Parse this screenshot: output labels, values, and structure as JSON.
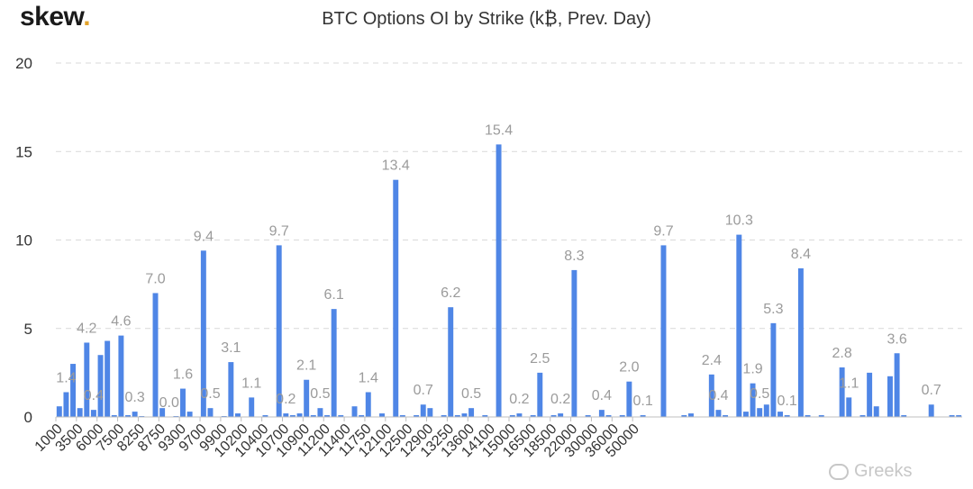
{
  "brand": {
    "logo_text": "skew",
    "logo_dot": ".",
    "accent": "#e3a32b"
  },
  "watermark": {
    "text": "Greeks",
    "icon": "wechat-icon"
  },
  "colors": {
    "bar": "#4f86e6",
    "label": "#9b9b9b",
    "grid": "#d9d9d9",
    "axis": "#bfbfbf"
  },
  "chart_data": {
    "type": "bar",
    "title": "BTC Options OI by Strike (k₿, Prev. Day)",
    "xlabel": "",
    "ylabel": "",
    "ylim": [
      0,
      20
    ],
    "yticks": [
      0,
      5,
      10,
      15,
      20
    ],
    "grid": "horizontal dashed",
    "x_tick_labels": [
      "1000",
      "3500",
      "6000",
      "7500",
      "8250",
      "8750",
      "9300",
      "9700",
      "9900",
      "10200",
      "10400",
      "10700",
      "10900",
      "11200",
      "11400",
      "11750",
      "12100",
      "12500",
      "12900",
      "13250",
      "13600",
      "14100",
      "15000",
      "16500",
      "18500",
      "22000",
      "30000",
      "36000",
      "50000"
    ],
    "tick_every": 3,
    "values": [
      0.6,
      1.4,
      3.0,
      0.5,
      4.2,
      0.4,
      3.5,
      4.3,
      0.1,
      4.6,
      0.1,
      0.3,
      0.05,
      0.0,
      7.0,
      0.5,
      0.0,
      0.05,
      1.6,
      0.3,
      0.0,
      9.4,
      0.5,
      0.0,
      0.05,
      3.1,
      0.2,
      0.0,
      1.1,
      0.0,
      0.1,
      0.0,
      9.7,
      0.2,
      0.1,
      0.2,
      2.1,
      0.1,
      0.5,
      0.1,
      6.1,
      0.1,
      0.0,
      0.6,
      0.1,
      1.4,
      0.0,
      0.2,
      0.0,
      13.4,
      0.1,
      0.0,
      0.1,
      0.7,
      0.5,
      0.0,
      0.1,
      6.2,
      0.1,
      0.2,
      0.5,
      0.0,
      0.1,
      0.0,
      15.4,
      0.0,
      0.1,
      0.2,
      0.0,
      0.1,
      2.5,
      0.0,
      0.1,
      0.2,
      0.0,
      8.3,
      0.0,
      0.1,
      0.0,
      0.4,
      0.1,
      0.0,
      0.1,
      2.0,
      0.0,
      0.1,
      0.0,
      0.0,
      9.7,
      0.0,
      0.0,
      0.1,
      0.2,
      0.0,
      0.0,
      2.4,
      0.4,
      0.1,
      0.0,
      10.3,
      0.3,
      1.9,
      0.5,
      0.7,
      5.3,
      0.3,
      0.1,
      0.0,
      8.4,
      0.1,
      0.0,
      0.1,
      0.0,
      0.0,
      2.8,
      1.1,
      0.0,
      0.1,
      2.5,
      0.6,
      0.0,
      2.3,
      3.6,
      0.1,
      0.0,
      0.0,
      0.0,
      0.7,
      0.0,
      0.0,
      0.1,
      0.1
    ],
    "data_labels": [
      {
        "i": 1,
        "text": "1.4"
      },
      {
        "i": 4,
        "text": "4.2"
      },
      {
        "i": 5,
        "text": "0.4"
      },
      {
        "i": 9,
        "text": "4.6"
      },
      {
        "i": 11,
        "text": "0.3"
      },
      {
        "i": 14,
        "text": "7.0"
      },
      {
        "i": 16,
        "text": "0.0"
      },
      {
        "i": 18,
        "text": "1.6"
      },
      {
        "i": 21,
        "text": "9.4"
      },
      {
        "i": 22,
        "text": "0.5"
      },
      {
        "i": 25,
        "text": "3.1"
      },
      {
        "i": 28,
        "text": "1.1"
      },
      {
        "i": 32,
        "text": "9.7"
      },
      {
        "i": 33,
        "text": "0.2"
      },
      {
        "i": 36,
        "text": "2.1"
      },
      {
        "i": 38,
        "text": "0.5"
      },
      {
        "i": 40,
        "text": "6.1"
      },
      {
        "i": 45,
        "text": "1.4"
      },
      {
        "i": 49,
        "text": "13.4"
      },
      {
        "i": 53,
        "text": "0.7"
      },
      {
        "i": 57,
        "text": "6.2"
      },
      {
        "i": 60,
        "text": "0.5"
      },
      {
        "i": 64,
        "text": "15.4"
      },
      {
        "i": 67,
        "text": "0.2"
      },
      {
        "i": 70,
        "text": "2.5"
      },
      {
        "i": 73,
        "text": "0.2"
      },
      {
        "i": 75,
        "text": "8.3"
      },
      {
        "i": 79,
        "text": "0.4"
      },
      {
        "i": 83,
        "text": "2.0"
      },
      {
        "i": 85,
        "text": "0.1"
      },
      {
        "i": 88,
        "text": "9.7"
      },
      {
        "i": 95,
        "text": "2.4"
      },
      {
        "i": 96,
        "text": "0.4"
      },
      {
        "i": 99,
        "text": "10.3"
      },
      {
        "i": 101,
        "text": "1.9"
      },
      {
        "i": 102,
        "text": "0.5"
      },
      {
        "i": 104,
        "text": "5.3"
      },
      {
        "i": 106,
        "text": "0.1"
      },
      {
        "i": 108,
        "text": "8.4"
      },
      {
        "i": 114,
        "text": "2.8"
      },
      {
        "i": 115,
        "text": "1.1"
      },
      {
        "i": 122,
        "text": "3.6"
      },
      {
        "i": 127,
        "text": "0.7"
      }
    ]
  }
}
